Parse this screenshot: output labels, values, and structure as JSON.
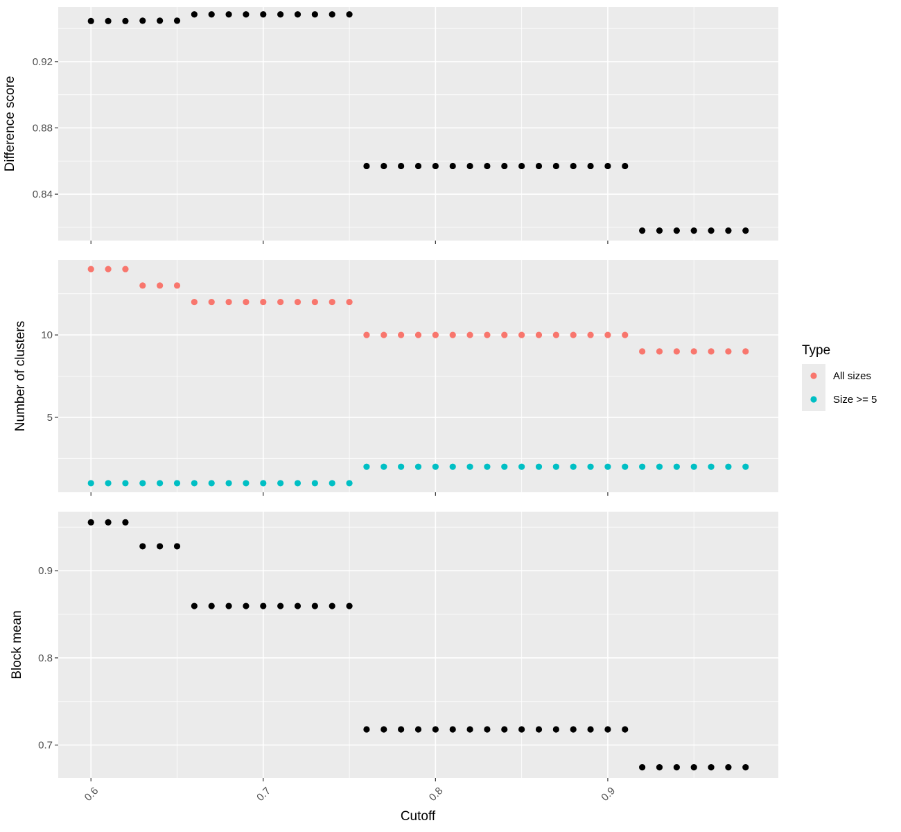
{
  "chart_data": [
    {
      "type": "scatter",
      "ylabel": "Difference score",
      "ylim": [
        0.812,
        0.953
      ],
      "y_ticks": [
        0.84,
        0.88,
        0.92
      ],
      "y_tick_labels": [
        "0.84",
        "0.88",
        "0.92"
      ],
      "y_minor": [
        0.82,
        0.86,
        0.9,
        0.94
      ],
      "series": [
        {
          "color": "#000000",
          "x": [
            0.6,
            0.61,
            0.62,
            0.63,
            0.64,
            0.65,
            0.66,
            0.67,
            0.68,
            0.69,
            0.7,
            0.71,
            0.72,
            0.73,
            0.74,
            0.75,
            0.76,
            0.77,
            0.78,
            0.79,
            0.8,
            0.81,
            0.82,
            0.83,
            0.84,
            0.85,
            0.86,
            0.87,
            0.88,
            0.89,
            0.9,
            0.91,
            0.92,
            0.93,
            0.94,
            0.95,
            0.96,
            0.97,
            0.98
          ],
          "y": [
            0.9445,
            0.9445,
            0.9445,
            0.9447,
            0.9447,
            0.9447,
            0.9485,
            0.9485,
            0.9485,
            0.9485,
            0.9485,
            0.9485,
            0.9485,
            0.9485,
            0.9485,
            0.9485,
            0.857,
            0.857,
            0.857,
            0.857,
            0.857,
            0.857,
            0.857,
            0.857,
            0.857,
            0.857,
            0.857,
            0.857,
            0.857,
            0.857,
            0.857,
            0.857,
            0.818,
            0.818,
            0.818,
            0.818,
            0.818,
            0.818,
            0.818
          ]
        }
      ]
    },
    {
      "type": "scatter",
      "ylabel": "Number of clusters",
      "ylim": [
        0.45,
        14.55
      ],
      "y_ticks": [
        5,
        10
      ],
      "y_tick_labels": [
        "5",
        "10"
      ],
      "y_minor": [
        2.5,
        7.5,
        12.5
      ],
      "series": [
        {
          "name": "All sizes",
          "color": "#F8766D",
          "x": [
            0.6,
            0.61,
            0.62,
            0.63,
            0.64,
            0.65,
            0.66,
            0.67,
            0.68,
            0.69,
            0.7,
            0.71,
            0.72,
            0.73,
            0.74,
            0.75,
            0.76,
            0.77,
            0.78,
            0.79,
            0.8,
            0.81,
            0.82,
            0.83,
            0.84,
            0.85,
            0.86,
            0.87,
            0.88,
            0.89,
            0.9,
            0.91,
            0.92,
            0.93,
            0.94,
            0.95,
            0.96,
            0.97,
            0.98
          ],
          "y": [
            14,
            14,
            14,
            13,
            13,
            13,
            12,
            12,
            12,
            12,
            12,
            12,
            12,
            12,
            12,
            12,
            10,
            10,
            10,
            10,
            10,
            10,
            10,
            10,
            10,
            10,
            10,
            10,
            10,
            10,
            10,
            10,
            9,
            9,
            9,
            9,
            9,
            9,
            9
          ]
        },
        {
          "name": "Size >= 5",
          "color": "#00BFC4",
          "x": [
            0.6,
            0.61,
            0.62,
            0.63,
            0.64,
            0.65,
            0.66,
            0.67,
            0.68,
            0.69,
            0.7,
            0.71,
            0.72,
            0.73,
            0.74,
            0.75,
            0.76,
            0.77,
            0.78,
            0.79,
            0.8,
            0.81,
            0.82,
            0.83,
            0.84,
            0.85,
            0.86,
            0.87,
            0.88,
            0.89,
            0.9,
            0.91,
            0.92,
            0.93,
            0.94,
            0.95,
            0.96,
            0.97,
            0.98
          ],
          "y": [
            1,
            1,
            1,
            1,
            1,
            1,
            1,
            1,
            1,
            1,
            1,
            1,
            1,
            1,
            1,
            1,
            2,
            2,
            2,
            2,
            2,
            2,
            2,
            2,
            2,
            2,
            2,
            2,
            2,
            2,
            2,
            2,
            2,
            2,
            2,
            2,
            2,
            2,
            2
          ]
        }
      ]
    },
    {
      "type": "scatter",
      "ylabel": "Block mean",
      "xlabel": "Cutoff",
      "ylim": [
        0.6623,
        0.9677
      ],
      "y_ticks": [
        0.7,
        0.8,
        0.9
      ],
      "y_tick_labels": [
        "0.7",
        "0.8",
        "0.9"
      ],
      "y_minor": [
        0.75,
        0.85,
        0.95
      ],
      "series": [
        {
          "color": "#000000",
          "x": [
            0.6,
            0.61,
            0.62,
            0.63,
            0.64,
            0.65,
            0.66,
            0.67,
            0.68,
            0.69,
            0.7,
            0.71,
            0.72,
            0.73,
            0.74,
            0.75,
            0.76,
            0.77,
            0.78,
            0.79,
            0.8,
            0.81,
            0.82,
            0.83,
            0.84,
            0.85,
            0.86,
            0.87,
            0.88,
            0.89,
            0.9,
            0.91,
            0.92,
            0.93,
            0.94,
            0.95,
            0.96,
            0.97,
            0.98
          ],
          "y": [
            0.9555,
            0.9555,
            0.9555,
            0.928,
            0.928,
            0.928,
            0.8595,
            0.8595,
            0.8595,
            0.8595,
            0.8595,
            0.8595,
            0.8595,
            0.8595,
            0.8595,
            0.8595,
            0.718,
            0.718,
            0.718,
            0.718,
            0.718,
            0.718,
            0.718,
            0.718,
            0.718,
            0.718,
            0.718,
            0.718,
            0.718,
            0.718,
            0.718,
            0.718,
            0.6745,
            0.6745,
            0.6745,
            0.6745,
            0.6745,
            0.6745,
            0.6745
          ]
        }
      ]
    }
  ],
  "x_axis": {
    "xlim": [
      0.581,
      0.999
    ],
    "ticks": [
      0.6,
      0.7,
      0.8,
      0.9
    ],
    "tick_labels": [
      "0.6",
      "0.7",
      "0.8",
      "0.9"
    ],
    "minor": [
      0.65,
      0.75,
      0.85,
      0.95
    ],
    "label": "Cutoff"
  },
  "legend": {
    "title": "Type",
    "placement": "right",
    "entries": [
      {
        "label": "All sizes",
        "color": "#F8766D"
      },
      {
        "label": "Size >= 5",
        "color": "#00BFC4"
      }
    ]
  }
}
